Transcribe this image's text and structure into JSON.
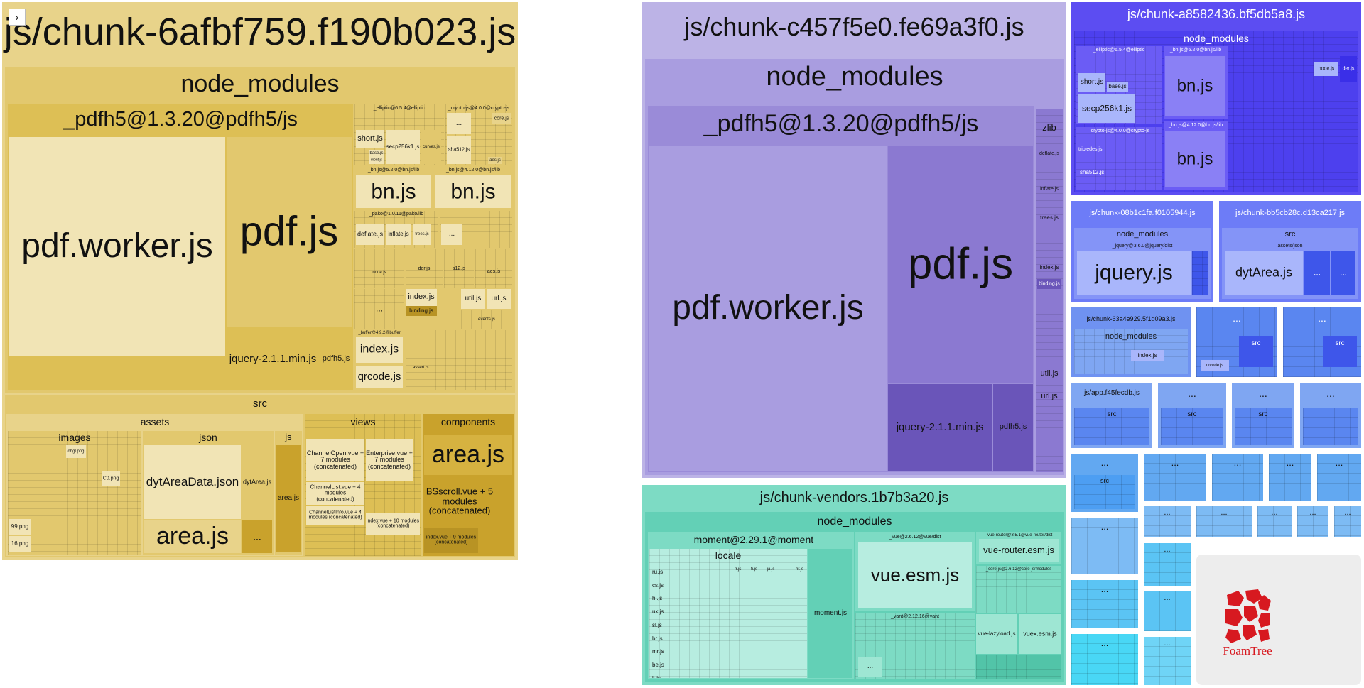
{
  "sidebar_toggle": "›",
  "groups": {
    "chunk_6afbf759": {
      "title": "js/chunk-6afbf759.f190b023.js",
      "node_modules": "node_modules",
      "pdfh5": "_pdfh5@1.3.20@pdfh5/js",
      "pdf_worker": "pdf.worker.js",
      "pdf": "pdf.js",
      "jquery": "jquery-2.1.1.min.js",
      "pdfh5_js": "pdfh5.js",
      "elliptic": "_elliptic@6.5.4@elliptic",
      "crypto": "_crypto-js@4.0.0@crypto-js",
      "short": "short.js",
      "secp": "secp256k1.js",
      "curves": "curves.js",
      "sha512": "sha512.js",
      "core": "core.js",
      "base": "base.js",
      "mont": "mont.js",
      "aes": "aes.js",
      "bn_520": "_bn.js@5.2.0@bn.js/lib",
      "bn_4120": "_bn.js@4.12.0@bn.js/lib",
      "bn": "bn.js",
      "pako": "_pako@1.0.11@pako/lib",
      "deflate": "deflate.js",
      "inflate": "inflate.js",
      "trees": "trees.js",
      "node": "node.js",
      "der": "der.js",
      "s12": "s12.js",
      "index": "index.js",
      "binding": "binding.js",
      "util": "util.js",
      "url": "url.js",
      "events": "events.js",
      "assert": "assert.js",
      "buffer": "_buffer@4.9.2@buffer",
      "qrcode": "qrcode.js",
      "ellipsis": "...",
      "src": "src",
      "assets": "assets",
      "images": "images",
      "json": "json",
      "js": "js",
      "views": "views",
      "components": "components",
      "dyt_json": "dytAreaData.json",
      "dyt_js": "dytArea.js",
      "area": "area.js",
      "png99": "99.png",
      "png16": "16.png",
      "dbgl": "dbgl.png",
      "c0": "C0.png",
      "channelopen": "ChannelOpen.vue + 7 modules (concatenated)",
      "enterprise": "Enterprise.vue + 7 modules (concatenated)",
      "channellist": "ChannelList.vue + 4 modules (concatenated)",
      "channellistinfo": "ChannelListInfo.vue + 4 modules (concatenated)",
      "indexvue10": "index.vue + 10 modules (concatenated)",
      "bscroll": "BSscroll.vue + 5 modules (concatenated)",
      "indexvue9": "index.vue + 9 modules (concatenated)"
    },
    "chunk_c457f5e0": {
      "title": "js/chunk-c457f5e0.fe69a3f0.js",
      "node_modules": "node_modules",
      "pdfh5": "_pdfh5@1.3.20@pdfh5/js",
      "pdf_worker": "pdf.worker.js",
      "pdf": "pdf.js",
      "jquery": "jquery-2.1.1.min.js",
      "pdfh5_js": "pdfh5.js",
      "zlib": "zlib",
      "deflate": "deflate.js",
      "inflate": "inflate.js",
      "trees": "trees.js",
      "index": "index.js",
      "binding": "binding.js",
      "util": "util.js",
      "url": "url.js",
      "ellipsis": "..."
    },
    "chunk_a8582436": {
      "title": "js/chunk-a8582436.bf5db5a8.js",
      "node_modules": "node_modules",
      "elliptic": "_elliptic@6.5.4@elliptic",
      "bn_520": "_bn.js@5.2.0@bn.js/lib",
      "short": "short.js",
      "base": "base.js",
      "secp": "secp256k1.js",
      "bn": "bn.js",
      "bn_4120": "_bn.js@4.12.0@bn.js/lib",
      "crypto": "_crypto-js@4.0.0@crypto-js",
      "tripledes": "tripledes.js",
      "sha512": "sha512.js",
      "node": "node.js",
      "der": "der.js",
      "ellipsis": "..."
    },
    "chunk_08b1c1fa": {
      "title": "js/chunk-08b1c1fa.f0105944.js",
      "node_modules": "node_modules",
      "jquery_dist": "_jquery@3.6.0@jquery/dist",
      "jquery": "jquery.js"
    },
    "chunk_bb5cb28c": {
      "title": "js/chunk-bb5cb28c.d13ca217.js",
      "src": "src",
      "assets_json": "assets/json",
      "dytarea": "dytArea.js",
      "ellipsis": "..."
    },
    "chunk_63a4e929": {
      "title": "js/chunk-63a4e929.5f1d09a3.js",
      "node_modules": "node_modules",
      "index": "index.js",
      "ellipsis": "..."
    },
    "misc": {
      "ellipsis": "...",
      "src": "src",
      "qrcode": "qrcode.js"
    },
    "app": {
      "title": "js/app.f45fecdb.js",
      "src": "src"
    },
    "vendors": {
      "title": "js/chunk-vendors.1b7b3a20.js",
      "node_modules": "node_modules",
      "moment_pkg": "_moment@2.29.1@moment",
      "locale": "locale",
      "moment": "moment.js",
      "vue_dist": "_vue@2.6.12@vue/dist",
      "vue_esm": "vue.esm.js",
      "vue_router_pkg": "_vue-router@3.5.1@vue-router/dist",
      "vue_router": "vue-router.esm.js",
      "corejs": "_core-js@2.6.12@core-js/modules",
      "vant": "_vant@2.12.16@vant",
      "vue_lazyload": "vue-lazyload.js",
      "vuex": "vuex.esm.js",
      "locales": [
        "ru.js",
        "cs.js",
        "hi.js",
        "uk.js",
        "sl.js",
        "br.js",
        "mr.js",
        "be.js",
        "lt.js"
      ],
      "locales_top": [
        "fr.js",
        "fi.js",
        "ja.js",
        "hr.js"
      ],
      "ellipsis": "..."
    }
  },
  "logo": "FoamTree",
  "colors": {
    "logo_red": "#d71920"
  }
}
